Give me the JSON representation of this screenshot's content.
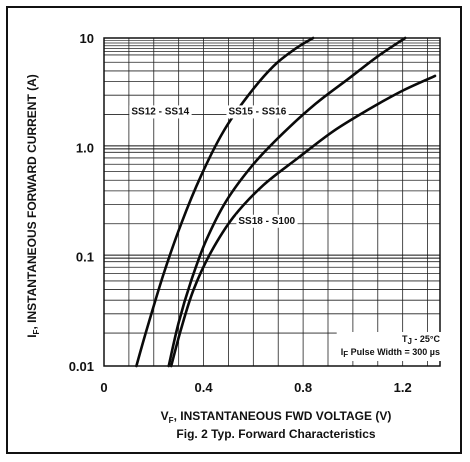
{
  "chart_data": {
    "type": "line",
    "title": "Fig. 2 Typ. Forward Characteristics",
    "xlabel_main": "V",
    "xlabel_sub": "F",
    "xlabel_rest": ", INSTANTANEOUS FWD VOLTAGE (V)",
    "ylabel_main": "I",
    "ylabel_sub": "F",
    "ylabel_rest": ", INSTANTANEOUS FORWARD CURRENT (A)",
    "xlim": [
      0,
      1.35
    ],
    "ylim": [
      0.01,
      10
    ],
    "yscale": "log",
    "grid": true,
    "x_ticks": [
      "0",
      "0.4",
      "0.8",
      "1.2"
    ],
    "x_tick_values": [
      0,
      0.4,
      0.8,
      1.2
    ],
    "y_ticks": [
      "0.01",
      "0.1",
      "1.0",
      "10"
    ],
    "y_tick_values": [
      0.01,
      0.1,
      1.0,
      10
    ],
    "conditions": {
      "temp_main": "T",
      "temp_sub": "J",
      "temp_rest": " - 25°C",
      "pulse_main": "I",
      "pulse_sub": "F",
      "pulse_rest": " Pulse Width = 300 µs"
    },
    "series": [
      {
        "name": "SS12 - SS14",
        "x": [
          0.13,
          0.18,
          0.24,
          0.31,
          0.39,
          0.48,
          0.58,
          0.68,
          0.77,
          0.84
        ],
        "y": [
          0.01,
          0.025,
          0.07,
          0.2,
          0.55,
          1.4,
          3.0,
          5.5,
          8.0,
          10.0
        ]
      },
      {
        "name": "SS15 - SS16",
        "x": [
          0.26,
          0.3,
          0.35,
          0.41,
          0.49,
          0.6,
          0.72,
          0.85,
          0.98,
          1.1,
          1.21
        ],
        "y": [
          0.01,
          0.025,
          0.06,
          0.14,
          0.32,
          0.7,
          1.35,
          2.5,
          4.2,
          6.8,
          10.0
        ]
      },
      {
        "name": "SS18 - S100",
        "x": [
          0.27,
          0.31,
          0.36,
          0.43,
          0.52,
          0.64,
          0.78,
          0.92,
          1.06,
          1.2,
          1.33
        ],
        "y": [
          0.01,
          0.022,
          0.05,
          0.11,
          0.23,
          0.45,
          0.8,
          1.4,
          2.2,
          3.3,
          4.5
        ]
      }
    ]
  }
}
